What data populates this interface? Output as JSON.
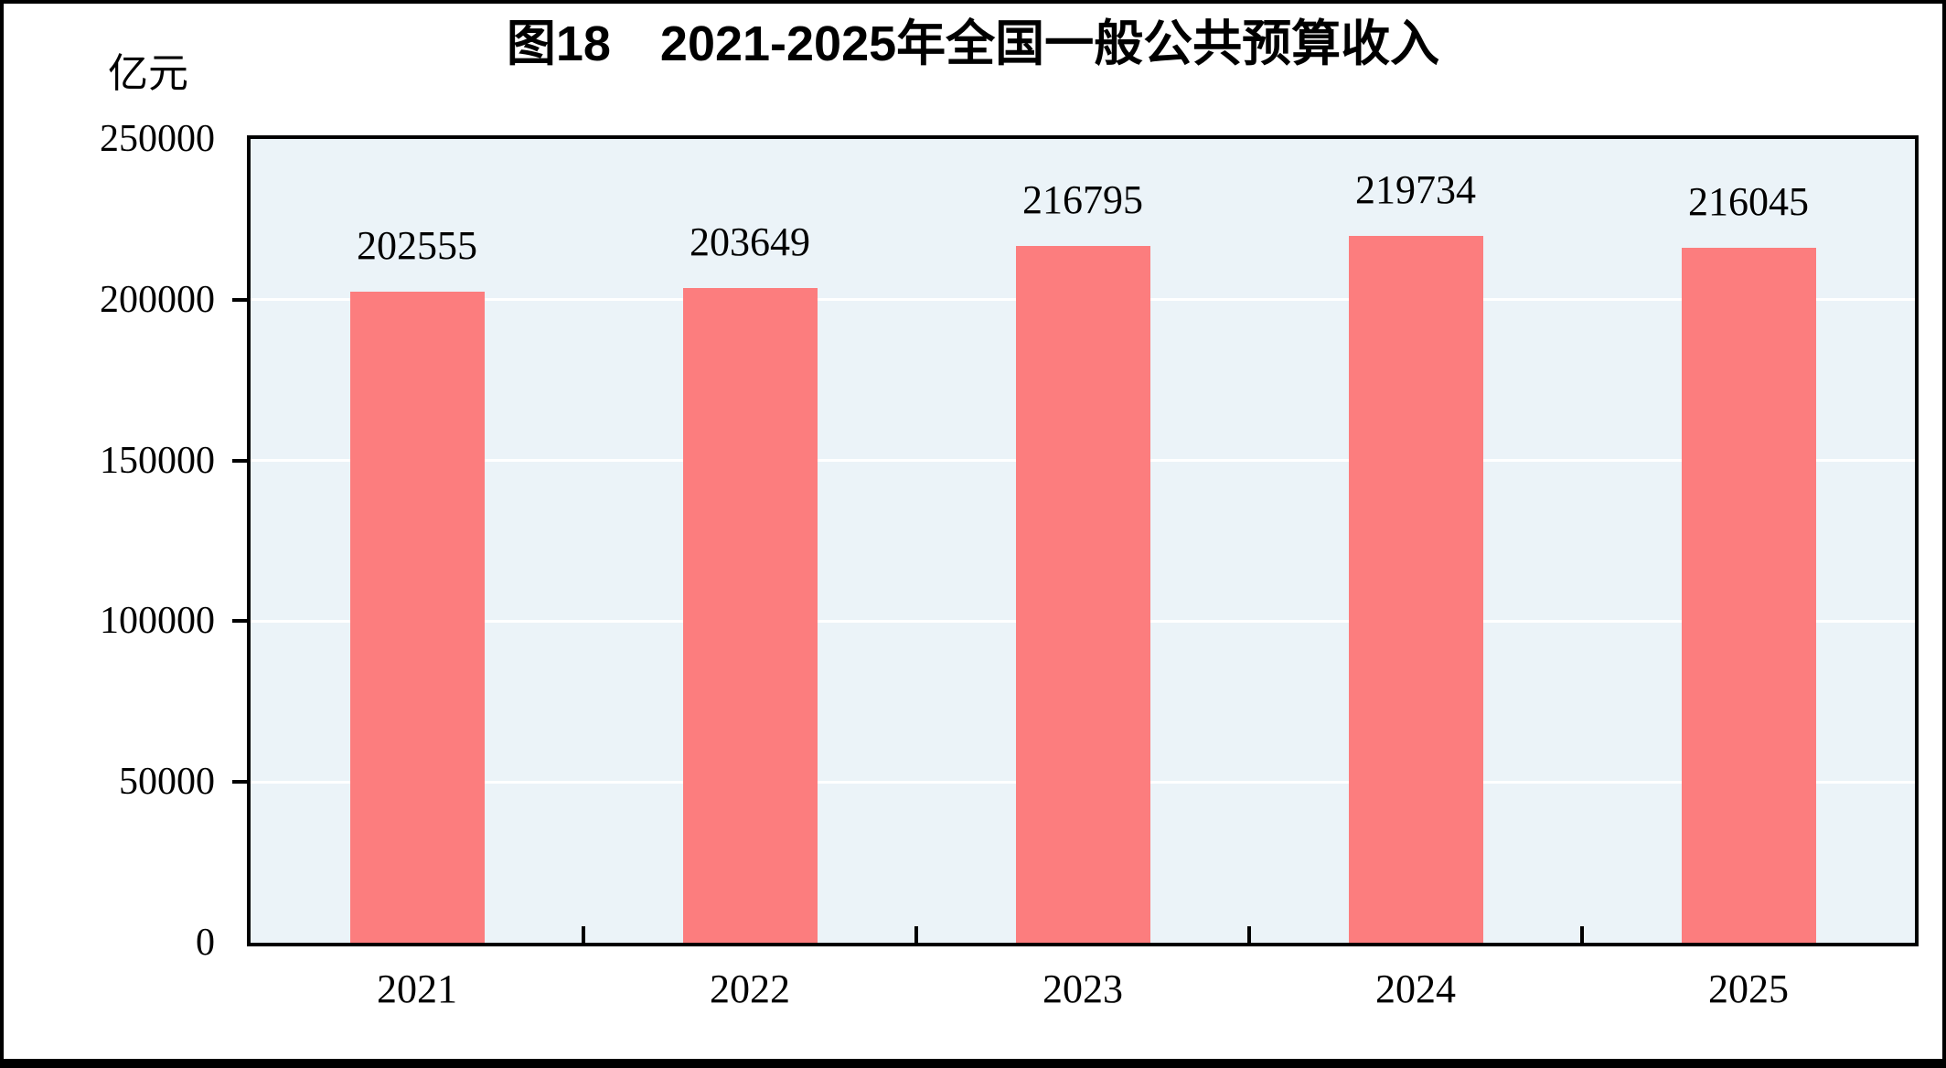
{
  "figure": {
    "title": "图18　2021-2025年全国一般公共预算收入",
    "unit_label": "亿元"
  },
  "colors": {
    "bar": "#FC7D7E",
    "plot_background": "#EBF3F8",
    "gridline": "#FFFFFF",
    "axis": "#000000",
    "text": "#000000"
  },
  "chart_data": {
    "type": "bar",
    "title": "图18　2021-2025年全国一般公共预算收入",
    "categories": [
      "2021",
      "2022",
      "2023",
      "2024",
      "2025"
    ],
    "values": [
      202555,
      203649,
      216795,
      219734,
      216045
    ],
    "data_labels": [
      "202555",
      "203649",
      "216795",
      "219734",
      "216045"
    ],
    "xlabel": "",
    "ylabel": "亿元",
    "ylim": [
      0,
      250000
    ],
    "yticks": [
      0,
      50000,
      100000,
      150000,
      200000,
      250000
    ],
    "ytick_labels": [
      "0",
      "50000",
      "100000",
      "150000",
      "200000",
      "250000"
    ],
    "grid": true,
    "legend_position": "none"
  }
}
